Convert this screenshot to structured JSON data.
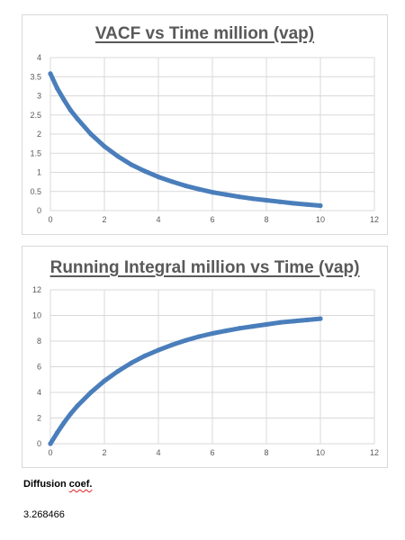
{
  "chart_data": [
    {
      "type": "scatter",
      "title": "VACF vs Time million (vap)",
      "xlabel": "",
      "ylabel": "",
      "xlim": [
        0,
        12
      ],
      "ylim": [
        0,
        4
      ],
      "x_ticks": [
        0,
        2,
        4,
        6,
        8,
        10,
        12
      ],
      "y_ticks": [
        0,
        0.5,
        1,
        1.5,
        2,
        2.5,
        3,
        3.5,
        4
      ],
      "grid": true,
      "color": "#4a7ebb",
      "series": [
        {
          "x": [
            0,
            0.25,
            0.5,
            0.75,
            1,
            1.5,
            2,
            2.5,
            3,
            3.5,
            4,
            4.5,
            5,
            5.5,
            6,
            6.5,
            7,
            7.5,
            8,
            8.5,
            9,
            9.5,
            10
          ],
          "y": [
            3.58,
            3.2,
            2.9,
            2.62,
            2.4,
            2.0,
            1.68,
            1.42,
            1.2,
            1.03,
            0.88,
            0.76,
            0.65,
            0.56,
            0.48,
            0.42,
            0.36,
            0.31,
            0.27,
            0.23,
            0.19,
            0.16,
            0.13
          ]
        }
      ]
    },
    {
      "type": "scatter",
      "title": "Running Integral million vs Time (vap)",
      "xlabel": "",
      "ylabel": "",
      "xlim": [
        0,
        12
      ],
      "ylim": [
        0,
        12
      ],
      "x_ticks": [
        0,
        2,
        4,
        6,
        8,
        10,
        12
      ],
      "y_ticks": [
        0,
        2,
        4,
        6,
        8,
        10,
        12
      ],
      "grid": true,
      "color": "#4a7ebb",
      "series": [
        {
          "x": [
            0,
            0.25,
            0.5,
            0.75,
            1,
            1.5,
            2,
            2.5,
            3,
            3.5,
            4,
            4.5,
            5,
            5.5,
            6,
            6.5,
            7,
            7.5,
            8,
            8.5,
            9,
            9.5,
            10
          ],
          "y": [
            0,
            0.85,
            1.63,
            2.33,
            2.95,
            4.0,
            4.9,
            5.65,
            6.3,
            6.85,
            7.3,
            7.7,
            8.05,
            8.35,
            8.6,
            8.8,
            9.0,
            9.15,
            9.3,
            9.45,
            9.55,
            9.65,
            9.75
          ]
        }
      ]
    }
  ],
  "diffusion": {
    "label_word1": "Diffusion",
    "label_word2": "coef.",
    "value": "3.268466"
  }
}
